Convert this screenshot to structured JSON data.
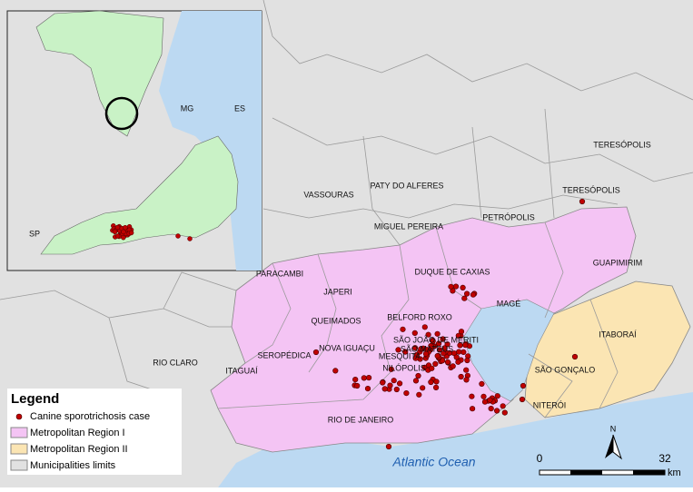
{
  "map": {
    "labels": [
      "TERESÓPOLIS",
      "TERESÓPOLIS",
      "VASSOURAS",
      "PATY DO ALFERES",
      "MIGUEL PEREIRA",
      "PETRÓPOLIS",
      "PARACAMBI",
      "DUQUE DE CAXIAS",
      "GUAPIMIRIM",
      "JAPERI",
      "MAGÉ",
      "QUEIMADOS",
      "BELFORD ROXO",
      "SÃO JOÃO DE MERITI",
      "SÃO MATEUS",
      "NOVA IGUAÇU",
      "MESQUITA",
      "NILÓPOLIS",
      "SEROPÉDICA",
      "ITAGUAÍ",
      "RIO CLARO",
      "ITABORAÍ",
      "SÃO GONÇALO",
      "NITERÓI",
      "RIO DE JANEIRO"
    ],
    "ocean_label": "Atlantic Ocean"
  },
  "inset": {
    "labels": [
      "MG",
      "ES",
      "SP"
    ]
  },
  "legend": {
    "title": "Legend",
    "items": [
      "Canine sporotrichosis case",
      "Metropolitan Region I",
      "Metropolitan Region II",
      "Municipalities limits"
    ]
  },
  "scale_bar": {
    "start": "0",
    "end": "32",
    "unit": "km"
  },
  "north_arrow": "N"
}
